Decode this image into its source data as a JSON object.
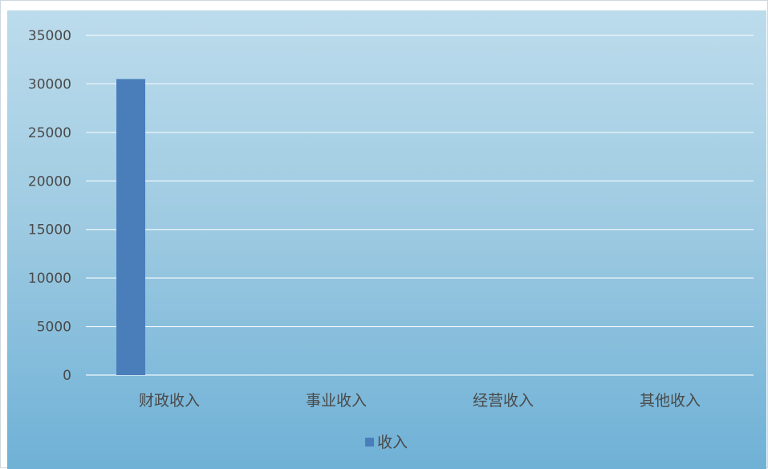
{
  "colors": {
    "bar": "#4a7ebb",
    "gridline": "#eef6fb",
    "text": "#4a4a4a"
  },
  "chart_data": {
    "type": "bar",
    "categories": [
      "财政收入",
      "事业收入",
      "经营收入",
      "其他收入"
    ],
    "series": [
      {
        "name": "收入",
        "values": [
          30500,
          0,
          0,
          0
        ]
      }
    ],
    "ylim": [
      0,
      35000
    ],
    "y_ticks": [
      "0",
      "5000",
      "10000",
      "15000",
      "20000",
      "25000",
      "30000",
      "35000"
    ],
    "grid": true,
    "legend": "bottom"
  }
}
